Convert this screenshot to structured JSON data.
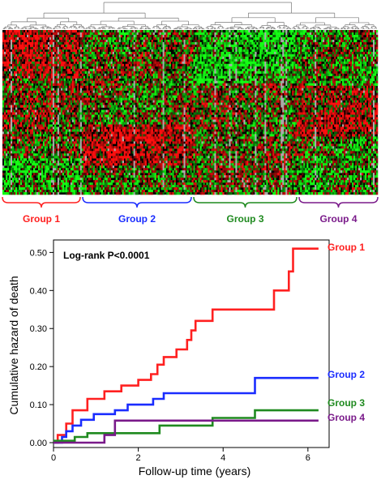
{
  "colors": {
    "group1": "#ff2020",
    "group2": "#1a2cff",
    "group3": "#1f8a1f",
    "group4": "#7a1a8a",
    "heat_red": "#e01010",
    "heat_green": "#10c010",
    "heat_grey": "#aaaaaa"
  },
  "heatmap": {
    "groups": [
      {
        "label": "Group 1",
        "color_key": "group1"
      },
      {
        "label": "Group 2",
        "color_key": "group2"
      },
      {
        "label": "Group 3",
        "color_key": "group3"
      },
      {
        "label": "Group 4",
        "color_key": "group4"
      }
    ]
  },
  "chart_data": {
    "type": "line",
    "xlabel": "Follow-up time (years)",
    "ylabel": "Cumulative hazard of death",
    "annotation": "Log-rank P<0.0001",
    "xlim": [
      0,
      6.5
    ],
    "ylim": [
      0,
      0.52
    ],
    "xticks": [
      "0",
      "2",
      "4",
      "6"
    ],
    "xtick_values": [
      0,
      2,
      4,
      6
    ],
    "yticks": [
      "0.00",
      "0.10",
      "0.20",
      "0.30",
      "0.40",
      "0.50"
    ],
    "ytick_values": [
      0,
      0.1,
      0.2,
      0.3,
      0.4,
      0.5
    ],
    "step": true,
    "grid": false,
    "legend": "right, at line ends",
    "series": [
      {
        "name": "Group 1",
        "color_key": "group1",
        "x": [
          0,
          0.1,
          0.3,
          0.45,
          0.8,
          1.2,
          1.6,
          2.0,
          2.3,
          2.45,
          2.6,
          2.9,
          3.15,
          3.25,
          3.35,
          3.75,
          5.2,
          5.55,
          5.65,
          6.25
        ],
        "y": [
          0.0,
          0.02,
          0.05,
          0.085,
          0.115,
          0.135,
          0.15,
          0.165,
          0.18,
          0.205,
          0.225,
          0.245,
          0.27,
          0.295,
          0.32,
          0.35,
          0.4,
          0.45,
          0.51,
          0.51
        ]
      },
      {
        "name": "Group 2",
        "color_key": "group2",
        "x": [
          0,
          0.2,
          0.3,
          0.45,
          0.65,
          0.95,
          1.45,
          1.75,
          2.35,
          2.6,
          4.75,
          6.25
        ],
        "y": [
          0.0,
          0.015,
          0.03,
          0.045,
          0.06,
          0.075,
          0.085,
          0.1,
          0.115,
          0.13,
          0.17,
          0.17
        ]
      },
      {
        "name": "Group 3",
        "color_key": "group3",
        "x": [
          0,
          0.5,
          0.8,
          2.5,
          3.75,
          4.75,
          6.25
        ],
        "y": [
          0.005,
          0.015,
          0.025,
          0.045,
          0.065,
          0.085,
          0.085
        ]
      },
      {
        "name": "Group 4",
        "color_key": "group4",
        "x": [
          0,
          1.2,
          1.45,
          6.25
        ],
        "y": [
          0.0,
          0.02,
          0.058,
          0.058
        ]
      }
    ]
  }
}
